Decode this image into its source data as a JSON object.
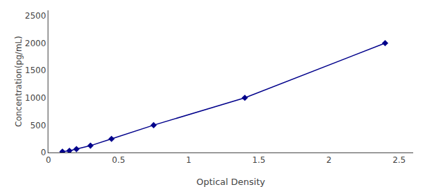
{
  "chart_data": {
    "type": "line",
    "x": [
      0.1,
      0.15,
      0.2,
      0.3,
      0.45,
      0.75,
      1.4,
      2.4
    ],
    "values": [
      16,
      31,
      62,
      125,
      250,
      500,
      1000,
      2000
    ],
    "color": "#00008B",
    "marker": "diamond",
    "xlabel": "Optical Density",
    "ylabel": "Concentration(pg/mL)",
    "xlim": [
      0,
      2.6
    ],
    "ylim": [
      0,
      2600
    ],
    "xticks": [
      0,
      0.5,
      1,
      1.5,
      2,
      2.5
    ],
    "yticks": [
      0,
      500,
      1000,
      1500,
      2000,
      2500
    ],
    "grid": false
  }
}
